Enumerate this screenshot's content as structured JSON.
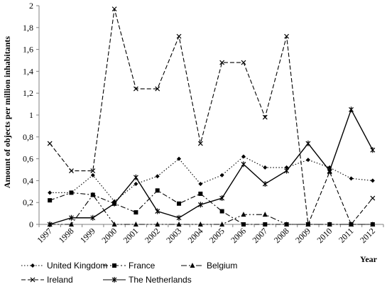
{
  "chart_data": {
    "type": "line",
    "title": "",
    "xlabel": "Year",
    "ylabel": "Amount of objects per million inhabitants",
    "ylim": [
      0,
      2
    ],
    "yticks": [
      "0",
      "0,2",
      "0,4",
      "0,6",
      "0,8",
      "1",
      "1,2",
      "1,4",
      "1,6",
      "1,8",
      "2"
    ],
    "grid": false,
    "legend_position": "bottom",
    "x": [
      "1997",
      "1998",
      "1999",
      "2000",
      "2001",
      "2002",
      "2003",
      "2004",
      "2005",
      "2006",
      "2007",
      "2008",
      "2009",
      "2010",
      "2011",
      "2012"
    ],
    "series": [
      {
        "name": "United Kingdom",
        "style": "dotted",
        "marker": "diamond",
        "values": [
          0.29,
          0.29,
          0.45,
          0.21,
          0.37,
          0.44,
          0.6,
          0.37,
          0.45,
          0.62,
          0.52,
          0.52,
          0.59,
          0.52,
          0.42,
          0.4
        ]
      },
      {
        "name": "France",
        "style": "dashdot",
        "marker": "square",
        "values": [
          0.22,
          0.29,
          0.27,
          0.19,
          0.11,
          0.31,
          0.19,
          0.28,
          0.12,
          0.0,
          0.0,
          0.0,
          0.0,
          0.0,
          0.0,
          0.0
        ]
      },
      {
        "name": "Belgium",
        "style": "dashdotdot",
        "marker": "triangle",
        "values": [
          0.0,
          0.0,
          0.27,
          0.0,
          0.0,
          0.0,
          0.0,
          0.0,
          0.0,
          0.09,
          0.09,
          0.0,
          0.0,
          0.0,
          0.0,
          0.0
        ]
      },
      {
        "name": "Ireland",
        "style": "dashed",
        "marker": "x",
        "values": [
          0.74,
          0.49,
          0.49,
          1.97,
          1.24,
          1.24,
          1.72,
          0.74,
          1.48,
          1.48,
          0.98,
          1.72,
          0.0,
          0.48,
          0.0,
          0.24
        ]
      },
      {
        "name": "The Netherlands",
        "style": "solid",
        "marker": "star",
        "values": [
          0.0,
          0.06,
          0.06,
          0.19,
          0.43,
          0.12,
          0.06,
          0.18,
          0.24,
          0.55,
          0.37,
          0.49,
          0.74,
          0.49,
          1.05,
          0.68
        ]
      }
    ]
  }
}
